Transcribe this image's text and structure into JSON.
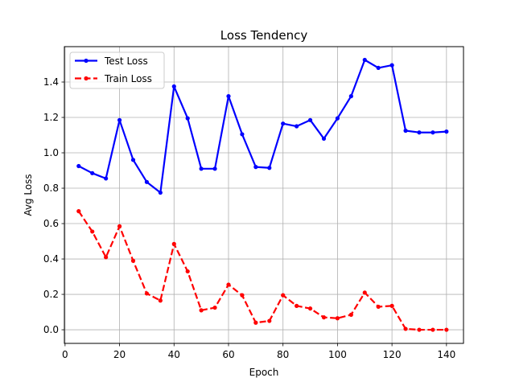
{
  "chart_data": {
    "type": "line",
    "title": "Loss Tendency",
    "xlabel": "Epoch",
    "ylabel": "Avg Loss",
    "xlim": [
      -0.25,
      146.25
    ],
    "ylim": [
      -0.077,
      1.6
    ],
    "xticks": [
      0,
      20,
      40,
      60,
      80,
      100,
      120,
      140
    ],
    "yticks": [
      0.0,
      0.2,
      0.4,
      0.6,
      0.8,
      1.0,
      1.2,
      1.4
    ],
    "ytick_decimals": 1,
    "grid": true,
    "legend": "top-left",
    "x": [
      5,
      10,
      15,
      20,
      25,
      30,
      35,
      40,
      45,
      50,
      55,
      60,
      65,
      70,
      75,
      80,
      85,
      90,
      95,
      100,
      105,
      110,
      115,
      120,
      125,
      130,
      135,
      140
    ],
    "series": [
      {
        "name": "Test Loss",
        "color": "#0000ff",
        "dash": false,
        "values": [
          0.925,
          0.885,
          0.855,
          1.185,
          0.96,
          0.835,
          0.775,
          1.375,
          1.195,
          0.91,
          0.91,
          1.32,
          1.105,
          0.92,
          0.915,
          1.165,
          1.15,
          1.185,
          1.08,
          1.195,
          1.32,
          1.525,
          1.48,
          1.495,
          1.125,
          1.115,
          1.115,
          1.12
        ]
      },
      {
        "name": "Train Loss",
        "color": "#ff0000",
        "dash": true,
        "values": [
          0.67,
          0.555,
          0.41,
          0.585,
          0.39,
          0.205,
          0.165,
          0.485,
          0.33,
          0.11,
          0.125,
          0.255,
          0.195,
          0.04,
          0.05,
          0.195,
          0.135,
          0.12,
          0.07,
          0.065,
          0.085,
          0.21,
          0.13,
          0.135,
          0.005,
          0.0,
          0.0,
          0.0
        ]
      }
    ]
  }
}
